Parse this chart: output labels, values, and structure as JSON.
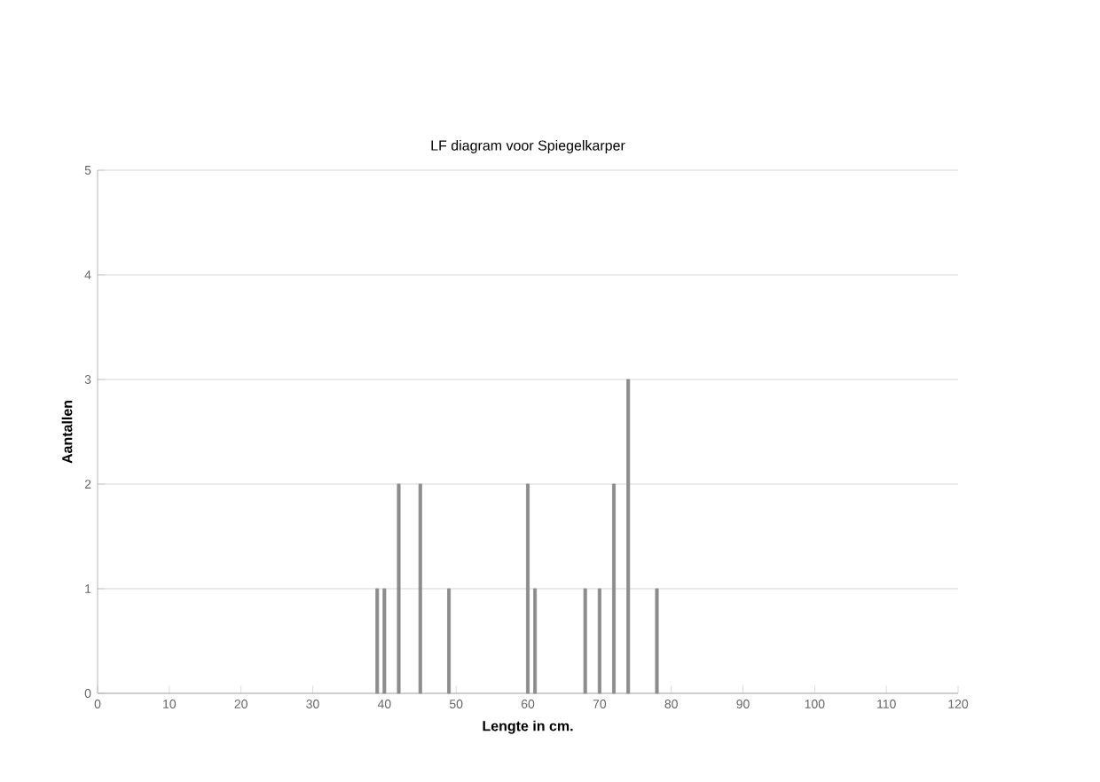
{
  "chart_data": {
    "type": "bar",
    "title": "LF diagram voor Spiegelkarper",
    "xlabel": "Lengte in cm.",
    "ylabel": "Aantallen",
    "x": [
      39,
      40,
      42,
      45,
      49,
      60,
      61,
      68,
      70,
      72,
      74,
      78
    ],
    "values": [
      1,
      1,
      2,
      2,
      1,
      2,
      1,
      1,
      1,
      2,
      3,
      1
    ],
    "color": "#8c8c8c",
    "xlim": [
      0,
      120
    ],
    "xticks": [
      0,
      10,
      20,
      30,
      40,
      50,
      60,
      70,
      80,
      90,
      100,
      110,
      120
    ],
    "ylim": [
      0,
      5
    ],
    "yticks": [
      0,
      1,
      2,
      3,
      4,
      5
    ],
    "grid": "y"
  }
}
